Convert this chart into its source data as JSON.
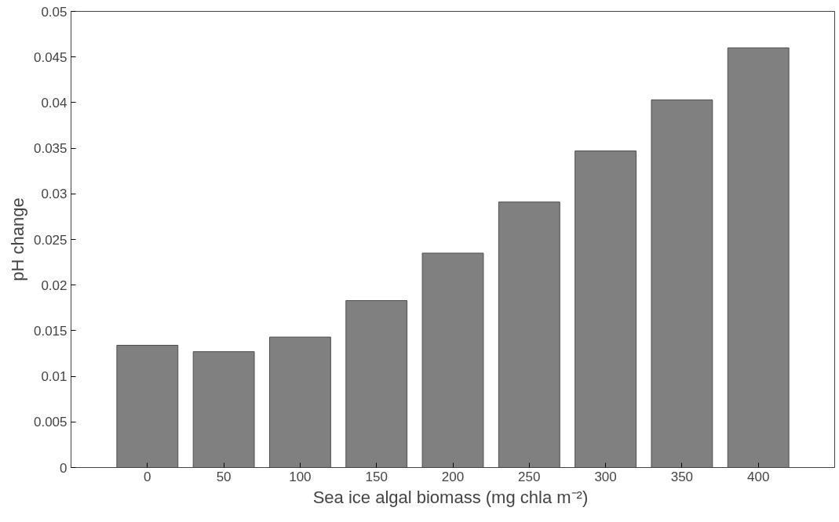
{
  "chart_data": {
    "type": "bar",
    "xlabel": "Sea ice algal biomass (mg chla  m⁻²)",
    "ylabel": "pH change",
    "categories": [
      "0",
      "50",
      "100",
      "150",
      "200",
      "250",
      "300",
      "350",
      "400"
    ],
    "values": [
      0.0134,
      0.0127,
      0.0143,
      0.0183,
      0.0235,
      0.0291,
      0.0347,
      0.0403,
      0.046
    ],
    "color": "#808080",
    "ylim": [
      0,
      0.05
    ],
    "yticks": [
      0,
      0.005,
      0.01,
      0.015,
      0.02,
      0.025,
      0.03,
      0.035,
      0.04,
      0.045,
      0.05
    ],
    "grid": false
  }
}
